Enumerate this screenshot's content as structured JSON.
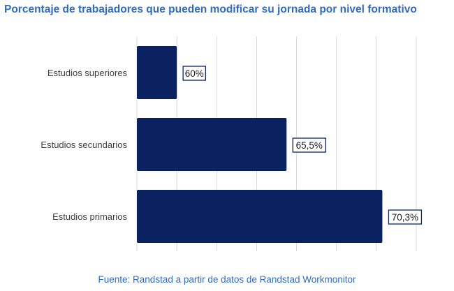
{
  "title": "Porcentaje de trabajadores que pueden modificar su jornada por nivel formativo",
  "source": "Fuente: Randstad a partir de datos de Randstad Workmonitor",
  "colors": {
    "title": "#2f6cc0",
    "bar": "#0a2360",
    "grid": "#d9d9d9",
    "category_text": "#404040",
    "label_border": "#0a2360",
    "label_text": "#1a1a1a"
  },
  "chart_data": {
    "type": "bar",
    "orientation": "horizontal",
    "categories": [
      "Estudios superiores",
      "Estudios secundarios",
      "Estudios primarios"
    ],
    "values": [
      60,
      65.5,
      70.3
    ],
    "data_labels": [
      "60%",
      "65,5%",
      "70,3%"
    ],
    "title": "Porcentaje de trabajadores que pueden modificar su jornada por nivel formativo",
    "xlabel": "",
    "ylabel": "",
    "xlim": [
      58,
      72
    ],
    "grid": "vertical",
    "legend": "none"
  }
}
